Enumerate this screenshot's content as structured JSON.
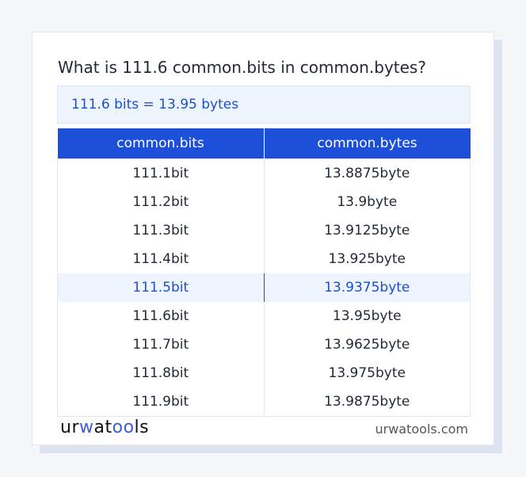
{
  "title": "What is 111.6 common.bits in common.bytes?",
  "result": "111.6 bits = 13.95 bytes",
  "table": {
    "headers": [
      "common.bits",
      "common.bytes"
    ],
    "highlight_row": 4,
    "rows": [
      [
        "111.1bit",
        "13.8875byte"
      ],
      [
        "111.2bit",
        "13.9byte"
      ],
      [
        "111.3bit",
        "13.9125byte"
      ],
      [
        "111.4bit",
        "13.925byte"
      ],
      [
        "111.5bit",
        "13.9375byte"
      ],
      [
        "111.6bit",
        "13.95byte"
      ],
      [
        "111.7bit",
        "13.9625byte"
      ],
      [
        "111.8bit",
        "13.975byte"
      ],
      [
        "111.9bit",
        "13.9875byte"
      ]
    ]
  },
  "footer": {
    "logo": {
      "a": "ur",
      "b": "w",
      "c": "at",
      "d": "oo",
      "e": "ls"
    },
    "site": "urwatools.com"
  },
  "colors": {
    "accent": "#1d4fd8",
    "highlight_bg": "#eef5ff"
  }
}
